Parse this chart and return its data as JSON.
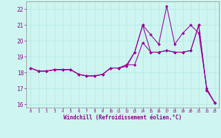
{
  "xlabel": "Windchill (Refroidissement éolien,°C)",
  "ylabel": "",
  "background_color": "#cef5f0",
  "line_color": "#990099",
  "grid_color": "#b8e8e4",
  "xlim": [
    -0.5,
    23.5
  ],
  "ylim": [
    15.8,
    22.5
  ],
  "yticks": [
    16,
    17,
    18,
    19,
    20,
    21,
    22
  ],
  "xticks": [
    0,
    1,
    2,
    3,
    4,
    5,
    6,
    7,
    8,
    9,
    10,
    11,
    12,
    13,
    14,
    15,
    16,
    17,
    18,
    19,
    20,
    21,
    22,
    23
  ],
  "line1": [
    18.3,
    18.1,
    18.1,
    18.2,
    18.2,
    18.2,
    17.9,
    17.8,
    17.8,
    17.9,
    18.3,
    18.3,
    18.4,
    19.3,
    21.0,
    19.3,
    19.3,
    19.4,
    19.3,
    19.3,
    19.4,
    21.0,
    16.9,
    16.1
  ],
  "line2": [
    18.3,
    18.1,
    18.1,
    18.2,
    18.2,
    18.2,
    17.9,
    17.8,
    17.8,
    17.9,
    18.3,
    18.3,
    18.5,
    19.3,
    21.0,
    20.4,
    19.8,
    22.2,
    19.8,
    20.5,
    21.0,
    20.5,
    17.0,
    16.1
  ],
  "line3": [
    18.3,
    18.1,
    18.1,
    18.2,
    18.2,
    18.2,
    17.9,
    17.8,
    17.8,
    17.9,
    18.3,
    18.3,
    18.5,
    18.5,
    19.9,
    19.3,
    19.3,
    19.4,
    19.3,
    19.3,
    19.4,
    21.0,
    16.9,
    16.1
  ]
}
